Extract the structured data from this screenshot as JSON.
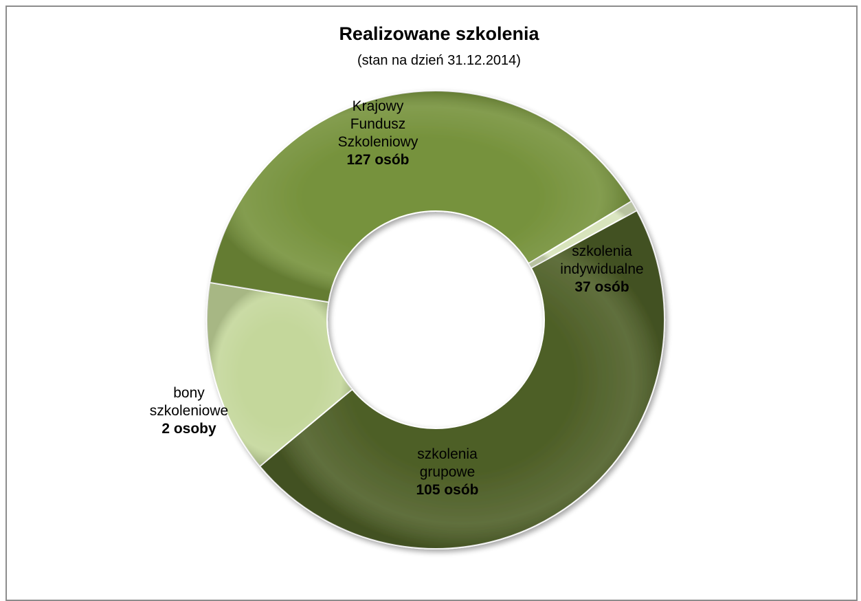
{
  "chart_data": {
    "type": "pie",
    "variant": "doughnut",
    "title": "Realizowane szkolenia",
    "subtitle": "(stan na dzień 31.12.2014)",
    "slices": [
      {
        "lines": [
          "Krajowy",
          "Fundusz",
          "Szkoleniowy"
        ],
        "value_label": "127 osób",
        "value": 127,
        "color": "#4e5f27"
      },
      {
        "lines": [
          "szkolenia",
          "indywidualne"
        ],
        "value_label": "37 osób",
        "value": 37,
        "color": "#c4d79b"
      },
      {
        "lines": [
          "szkolenia",
          "grupowe"
        ],
        "value_label": "105 osób",
        "value": 105,
        "color": "#76923c"
      },
      {
        "lines": [
          "bony",
          "szkoleniowe"
        ],
        "value_label": "2 osoby",
        "value": 2,
        "color": "#d8e4bc"
      }
    ],
    "legend": "none"
  }
}
